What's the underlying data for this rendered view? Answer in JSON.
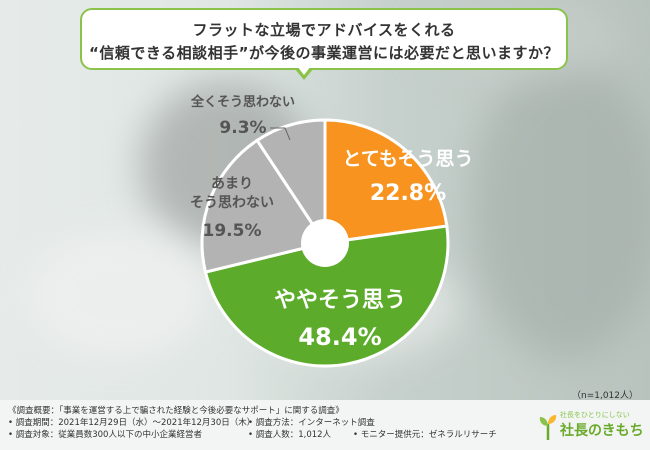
{
  "question": {
    "line1": "フラットな立場でアドバイスをくれる",
    "line2": "“信頼できる相談相手”が今後の事業運営には必要だと思いますか？"
  },
  "chart_data": {
    "type": "pie",
    "donut": true,
    "categories": [
      "とてもそう思う",
      "ややそう思う",
      "あまりそう思わない",
      "全くそう思わない"
    ],
    "values": [
      22.8,
      48.4,
      19.5,
      9.3
    ],
    "value_labels": [
      "22.8%",
      "48.4%",
      "19.5%",
      "9.3%"
    ],
    "colors": [
      "#f7931e",
      "#5cab2a",
      "#b3b3b3",
      "#b3b3b3"
    ],
    "title": ""
  },
  "labels": {
    "very_yes": "とてもそう思う",
    "very_yes_value": "22.8%",
    "somewhat_yes_label": "ややそう思う",
    "somewhat_yes_value": "48.4%",
    "not_much_line1": "あまり",
    "not_much_line2": "そう思わない",
    "not_much_value": "19.5%",
    "not_at_all": "全くそう思わない",
    "not_at_all_value": "9.3%"
  },
  "sample_size": "（n=1,012人）",
  "survey": {
    "overview": "《調査概要：「事業を運営する上で騙された経験と今後必要なサポート」に関する調査》",
    "period": "• 調査期間：2021年12月29日（水）〜2021年12月30日（木）",
    "method": "• 調査方法：インターネット調査",
    "target": "• 調査対象：従業員数300人以下の中小企業経営者",
    "count": "• 調査人数：1,012人",
    "provider": "• モニター提供元：ゼネラルリサーチ"
  },
  "logo": {
    "tagline": "社長をひとりにしない",
    "name": "社長のきもち"
  }
}
